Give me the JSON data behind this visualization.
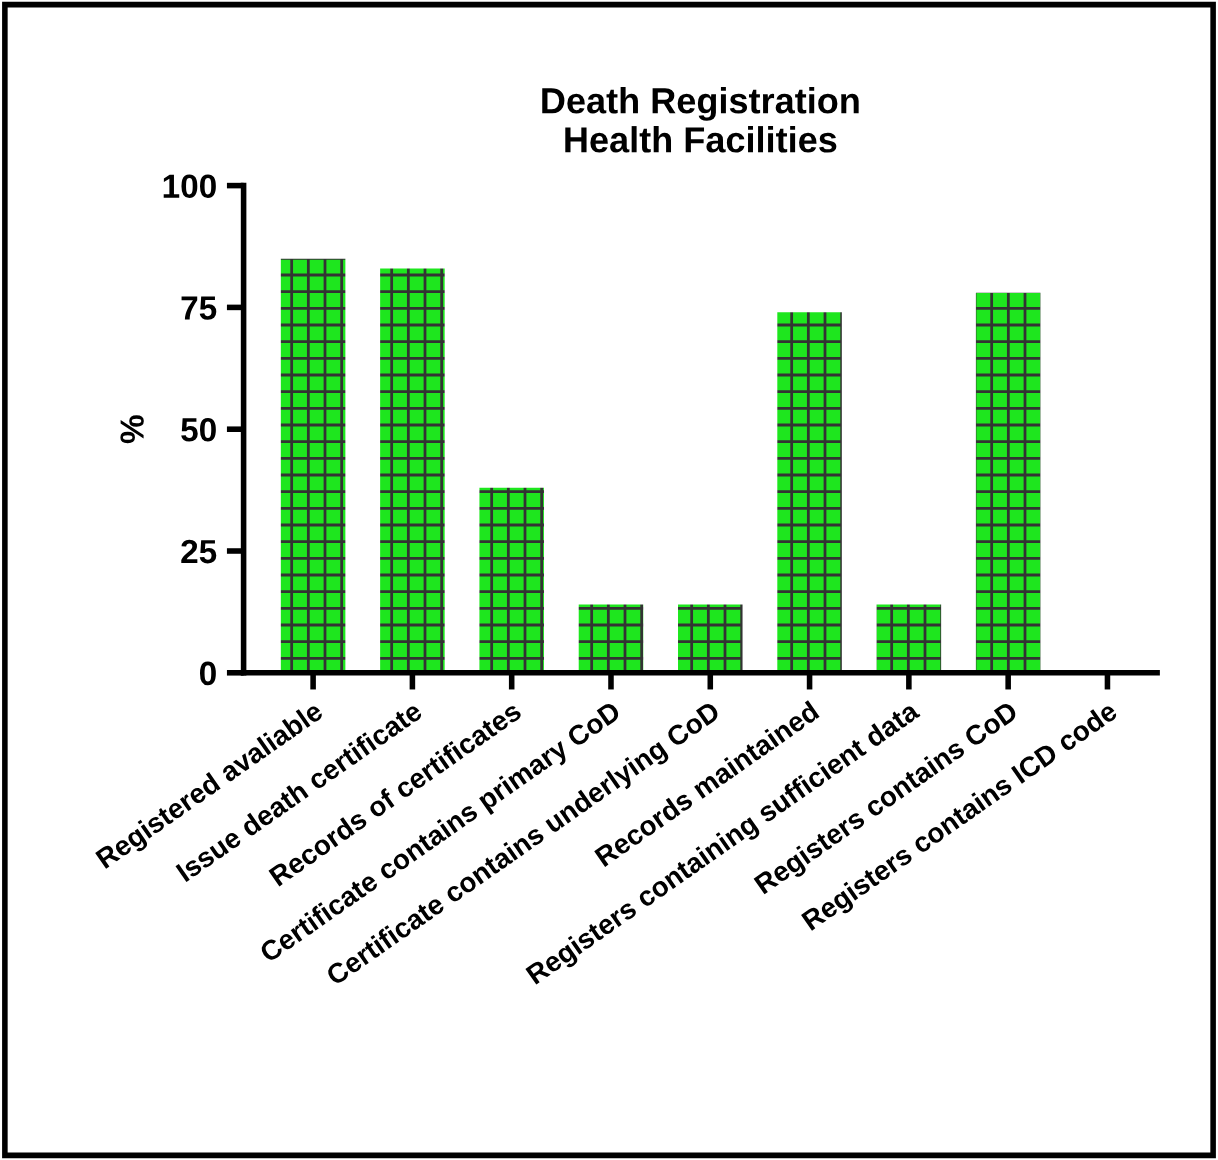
{
  "chart_data": {
    "type": "bar",
    "title": "Death Registration\nHealth Facilities",
    "ylabel": "%",
    "categories": [
      "Registered avaliable",
      "Issue death certificate",
      "Records of certificates",
      "Certificate contains primary CoD",
      "Certificate contains underlying CoD",
      "Records maintained",
      "Registers containing sufficient data",
      "Registers contains CoD",
      "Registers contains ICD code"
    ],
    "values": [
      85,
      83,
      38,
      14,
      14,
      74,
      14,
      78,
      0
    ],
    "color": "#1ee61e",
    "ylim": [
      0,
      100
    ],
    "yticks": [
      0,
      25,
      50,
      75,
      100
    ],
    "grid": false
  }
}
